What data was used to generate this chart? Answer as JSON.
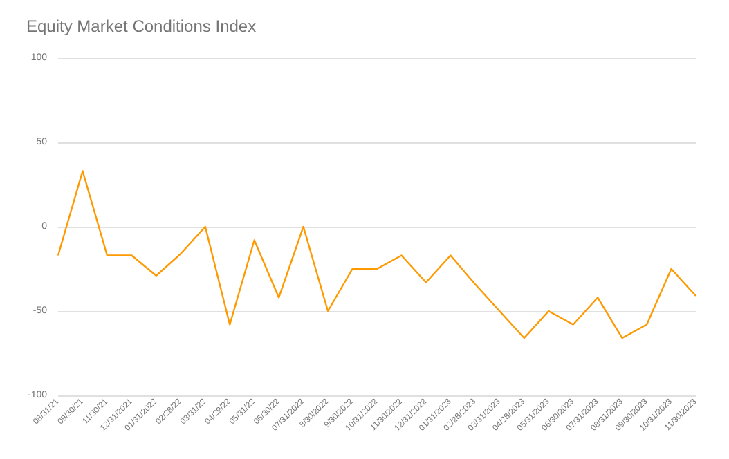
{
  "chart_data": {
    "type": "line",
    "title": "Equity Market Conditions Index",
    "categories": [
      "08/31/21",
      "09/30/21",
      "11/30/21",
      "12/31/2021",
      "01/31/2022",
      "02/28/22",
      "03/31/22",
      "04/29/22",
      "05/31/22",
      "06/30/22",
      "07/31/2022",
      "8/30/2022",
      "9/30/2022",
      "10/31/2022",
      "11/30/2022",
      "12/31/2022",
      "01/31/2023",
      "02/28/2023",
      "03/31/2023",
      "04/28/2023",
      "05/31/2023",
      "06/30/2023",
      "07/31/2023",
      "08/31/2023",
      "09/30/2023",
      "10/31/2023",
      "11/30/2023"
    ],
    "series": [
      {
        "color": "#ff9900",
        "values": [
          -17,
          33,
          -17,
          -17,
          -29,
          -16,
          0,
          -58,
          -8,
          -42,
          0,
          -50,
          -25,
          -25,
          -17,
          -33,
          -17,
          -34,
          -50,
          -66,
          -50,
          -58,
          -42,
          -66,
          -58,
          -25,
          -41
        ]
      }
    ],
    "ylim": [
      -100,
      100
    ],
    "yticks": [
      -100,
      -50,
      0,
      50,
      100
    ],
    "grid": "y",
    "marker": "none",
    "line_style": "solid"
  }
}
